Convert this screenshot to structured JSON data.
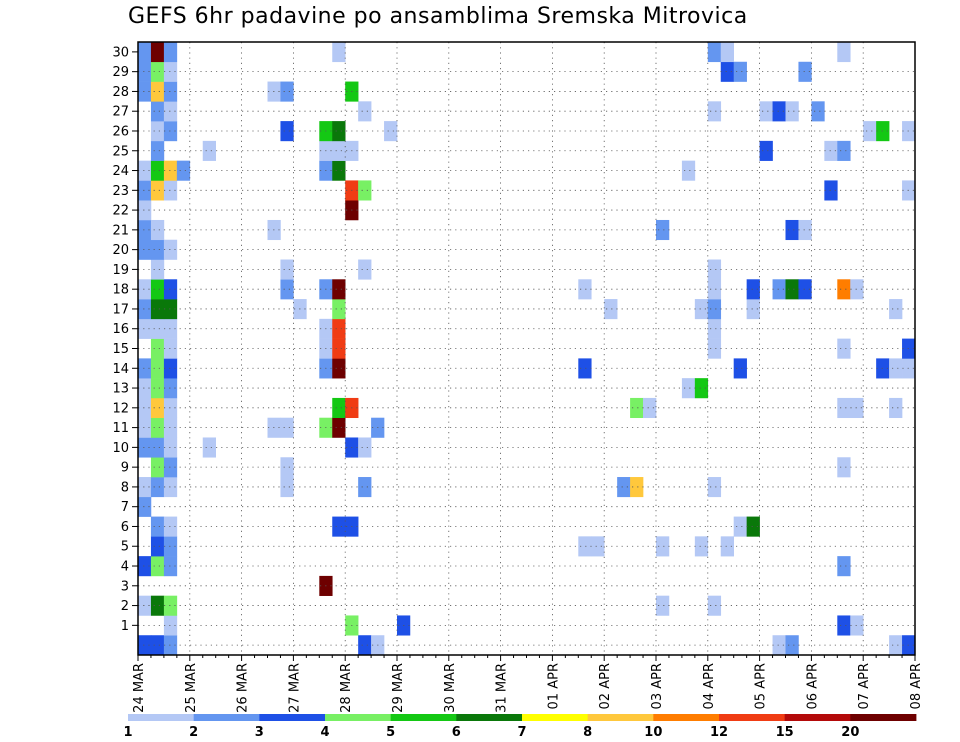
{
  "chart_data": {
    "type": "heatmap",
    "title": "GEFS 6hr padavine po ansamblima Sremska Mitrovica",
    "x_tick_labels": [
      "24 MAR",
      "25 MAR",
      "26 MAR",
      "27 MAR",
      "28 MAR",
      "29 MAR",
      "30 MAR",
      "31 MAR",
      "01 APR",
      "02 APR",
      "03 APR",
      "04 APR",
      "05 APR",
      "06 APR",
      "07 APR",
      "08 APR"
    ],
    "y_tick_labels": [
      "1",
      "2",
      "3",
      "4",
      "5",
      "6",
      "7",
      "8",
      "9",
      "10",
      "11",
      "12",
      "13",
      "14",
      "15",
      "16",
      "17",
      "18",
      "19",
      "20",
      "21",
      "22",
      "23",
      "24",
      "25",
      "26",
      "27",
      "28",
      "29",
      "30"
    ],
    "x_step": "6hr",
    "xlim": [
      0,
      60
    ],
    "ylim": [
      0,
      31
    ],
    "grid": true,
    "colorbar": {
      "labels": [
        "1",
        "2",
        "3",
        "4",
        "5",
        "6",
        "7",
        "8",
        "10",
        "12",
        "15",
        "20"
      ],
      "colors": [
        "#b4c8f5",
        "#6496f0",
        "#1e50e6",
        "#78f064",
        "#14c814",
        "#0a780a",
        "#ffff00",
        "#ffc83c",
        "#ff7d00",
        "#f03c14",
        "#b40a0a",
        "#6e0000"
      ]
    },
    "cells": [
      {
        "member": 0,
        "t": 0,
        "v": 3
      },
      {
        "member": 0,
        "t": 1,
        "v": 3
      },
      {
        "member": 0,
        "t": 2,
        "v": 2
      },
      {
        "member": 0,
        "t": 17,
        "v": 3
      },
      {
        "member": 0,
        "t": 18,
        "v": 1
      },
      {
        "member": 0,
        "t": 49,
        "v": 1
      },
      {
        "member": 0,
        "t": 50,
        "v": 2
      },
      {
        "member": 0,
        "t": 58,
        "v": 1
      },
      {
        "member": 0,
        "t": 59,
        "v": 3
      },
      {
        "member": 1,
        "t": 2,
        "v": 1
      },
      {
        "member": 1,
        "t": 16,
        "v": 4
      },
      {
        "member": 1,
        "t": 20,
        "v": 3
      },
      {
        "member": 1,
        "t": 54,
        "v": 3
      },
      {
        "member": 1,
        "t": 55,
        "v": 1
      },
      {
        "member": 2,
        "t": 0,
        "v": 1
      },
      {
        "member": 2,
        "t": 1,
        "v": 6
      },
      {
        "member": 2,
        "t": 2,
        "v": 4
      },
      {
        "member": 2,
        "t": 40,
        "v": 1
      },
      {
        "member": 2,
        "t": 44,
        "v": 1
      },
      {
        "member": 3,
        "t": 14,
        "v": 16
      },
      {
        "member": 4,
        "t": 0,
        "v": 3
      },
      {
        "member": 4,
        "t": 1,
        "v": 4
      },
      {
        "member": 4,
        "t": 2,
        "v": 2
      },
      {
        "member": 4,
        "t": 54,
        "v": 2
      },
      {
        "member": 5,
        "t": 1,
        "v": 3
      },
      {
        "member": 5,
        "t": 2,
        "v": 2
      },
      {
        "member": 5,
        "t": 34,
        "v": 1
      },
      {
        "member": 5,
        "t": 35,
        "v": 1
      },
      {
        "member": 5,
        "t": 40,
        "v": 1
      },
      {
        "member": 5,
        "t": 43,
        "v": 1
      },
      {
        "member": 5,
        "t": 45,
        "v": 1
      },
      {
        "member": 6,
        "t": 1,
        "v": 2
      },
      {
        "member": 6,
        "t": 2,
        "v": 1
      },
      {
        "member": 6,
        "t": 15,
        "v": 3
      },
      {
        "member": 6,
        "t": 16,
        "v": 3
      },
      {
        "member": 6,
        "t": 46,
        "v": 1
      },
      {
        "member": 6,
        "t": 47,
        "v": 6
      },
      {
        "member": 7,
        "t": 0,
        "v": 2
      },
      {
        "member": 8,
        "t": 0,
        "v": 1
      },
      {
        "member": 8,
        "t": 1,
        "v": 2
      },
      {
        "member": 8,
        "t": 2,
        "v": 1
      },
      {
        "member": 8,
        "t": 11,
        "v": 1
      },
      {
        "member": 8,
        "t": 17,
        "v": 2
      },
      {
        "member": 8,
        "t": 37,
        "v": 2
      },
      {
        "member": 8,
        "t": 38,
        "v": 8
      },
      {
        "member": 8,
        "t": 44,
        "v": 1
      },
      {
        "member": 9,
        "t": 1,
        "v": 4
      },
      {
        "member": 9,
        "t": 2,
        "v": 2
      },
      {
        "member": 9,
        "t": 11,
        "v": 1
      },
      {
        "member": 9,
        "t": 54,
        "v": 1
      },
      {
        "member": 10,
        "t": 0,
        "v": 2
      },
      {
        "member": 10,
        "t": 1,
        "v": 2
      },
      {
        "member": 10,
        "t": 2,
        "v": 1
      },
      {
        "member": 10,
        "t": 5,
        "v": 1
      },
      {
        "member": 10,
        "t": 16,
        "v": 3
      },
      {
        "member": 10,
        "t": 17,
        "v": 1
      },
      {
        "member": 11,
        "t": 0,
        "v": 1
      },
      {
        "member": 11,
        "t": 1,
        "v": 4
      },
      {
        "member": 11,
        "t": 2,
        "v": 1
      },
      {
        "member": 11,
        "t": 10,
        "v": 1
      },
      {
        "member": 11,
        "t": 11,
        "v": 1
      },
      {
        "member": 11,
        "t": 14,
        "v": 4
      },
      {
        "member": 11,
        "t": 15,
        "v": 16
      },
      {
        "member": 11,
        "t": 18,
        "v": 2
      },
      {
        "member": 12,
        "t": 0,
        "v": 1
      },
      {
        "member": 12,
        "t": 1,
        "v": 8
      },
      {
        "member": 12,
        "t": 2,
        "v": 1
      },
      {
        "member": 12,
        "t": 15,
        "v": 5
      },
      {
        "member": 12,
        "t": 16,
        "v": 10
      },
      {
        "member": 12,
        "t": 38,
        "v": 4
      },
      {
        "member": 12,
        "t": 39,
        "v": 1
      },
      {
        "member": 12,
        "t": 54,
        "v": 1
      },
      {
        "member": 12,
        "t": 55,
        "v": 1
      },
      {
        "member": 12,
        "t": 58,
        "v": 1
      },
      {
        "member": 13,
        "t": 0,
        "v": 1
      },
      {
        "member": 13,
        "t": 1,
        "v": 4
      },
      {
        "member": 13,
        "t": 2,
        "v": 2
      },
      {
        "member": 13,
        "t": 42,
        "v": 1
      },
      {
        "member": 13,
        "t": 43,
        "v": 5
      },
      {
        "member": 14,
        "t": 0,
        "v": 2
      },
      {
        "member": 14,
        "t": 1,
        "v": 4
      },
      {
        "member": 14,
        "t": 2,
        "v": 3
      },
      {
        "member": 14,
        "t": 14,
        "v": 2
      },
      {
        "member": 14,
        "t": 15,
        "v": 12
      },
      {
        "member": 14,
        "t": 34,
        "v": 3
      },
      {
        "member": 14,
        "t": 46,
        "v": 3
      },
      {
        "member": 14,
        "t": 57,
        "v": 3
      },
      {
        "member": 14,
        "t": 58,
        "v": 1
      },
      {
        "member": 14,
        "t": 59,
        "v": 1
      },
      {
        "member": 15,
        "t": 1,
        "v": 4
      },
      {
        "member": 15,
        "t": 2,
        "v": 1
      },
      {
        "member": 15,
        "t": 14,
        "v": 1
      },
      {
        "member": 15,
        "t": 15,
        "v": 10
      },
      {
        "member": 15,
        "t": 44,
        "v": 1
      },
      {
        "member": 15,
        "t": 54,
        "v": 1
      },
      {
        "member": 15,
        "t": 59,
        "v": 3
      },
      {
        "member": 16,
        "t": 0,
        "v": 1
      },
      {
        "member": 16,
        "t": 1,
        "v": 1
      },
      {
        "member": 16,
        "t": 2,
        "v": 1
      },
      {
        "member": 16,
        "t": 14,
        "v": 1
      },
      {
        "member": 16,
        "t": 15,
        "v": 10
      },
      {
        "member": 16,
        "t": 44,
        "v": 1
      },
      {
        "member": 17,
        "t": 0,
        "v": 2
      },
      {
        "member": 17,
        "t": 1,
        "v": 6
      },
      {
        "member": 17,
        "t": 2,
        "v": 6
      },
      {
        "member": 17,
        "t": 12,
        "v": 1
      },
      {
        "member": 17,
        "t": 15,
        "v": 4
      },
      {
        "member": 17,
        "t": 36,
        "v": 1
      },
      {
        "member": 17,
        "t": 43,
        "v": 1
      },
      {
        "member": 17,
        "t": 44,
        "v": 2
      },
      {
        "member": 17,
        "t": 47,
        "v": 1
      },
      {
        "member": 17,
        "t": 58,
        "v": 1
      },
      {
        "member": 18,
        "t": 0,
        "v": 1
      },
      {
        "member": 18,
        "t": 1,
        "v": 5
      },
      {
        "member": 18,
        "t": 2,
        "v": 3
      },
      {
        "member": 18,
        "t": 11,
        "v": 2
      },
      {
        "member": 18,
        "t": 14,
        "v": 2
      },
      {
        "member": 18,
        "t": 15,
        "v": 12
      },
      {
        "member": 18,
        "t": 34,
        "v": 1
      },
      {
        "member": 18,
        "t": 44,
        "v": 1
      },
      {
        "member": 18,
        "t": 47,
        "v": 3
      },
      {
        "member": 18,
        "t": 49,
        "v": 2
      },
      {
        "member": 18,
        "t": 50,
        "v": 6
      },
      {
        "member": 18,
        "t": 51,
        "v": 3
      },
      {
        "member": 18,
        "t": 54,
        "v": 9
      },
      {
        "member": 18,
        "t": 55,
        "v": 1
      },
      {
        "member": 19,
        "t": 1,
        "v": 1
      },
      {
        "member": 19,
        "t": 11,
        "v": 1
      },
      {
        "member": 19,
        "t": 17,
        "v": 1
      },
      {
        "member": 19,
        "t": 44,
        "v": 1
      },
      {
        "member": 20,
        "t": 0,
        "v": 2
      },
      {
        "member": 20,
        "t": 1,
        "v": 2
      },
      {
        "member": 20,
        "t": 2,
        "v": 1
      },
      {
        "member": 21,
        "t": 0,
        "v": 2
      },
      {
        "member": 21,
        "t": 1,
        "v": 1
      },
      {
        "member": 21,
        "t": 10,
        "v": 1
      },
      {
        "member": 21,
        "t": 40,
        "v": 2
      },
      {
        "member": 21,
        "t": 50,
        "v": 3
      },
      {
        "member": 21,
        "t": 51,
        "v": 1
      },
      {
        "member": 22,
        "t": 0,
        "v": 1
      },
      {
        "member": 22,
        "t": 16,
        "v": 12
      },
      {
        "member": 23,
        "t": 0,
        "v": 2
      },
      {
        "member": 23,
        "t": 1,
        "v": 8
      },
      {
        "member": 23,
        "t": 2,
        "v": 1
      },
      {
        "member": 23,
        "t": 16,
        "v": 10
      },
      {
        "member": 23,
        "t": 17,
        "v": 4
      },
      {
        "member": 23,
        "t": 53,
        "v": 3
      },
      {
        "member": 23,
        "t": 59,
        "v": 1
      },
      {
        "member": 24,
        "t": 0,
        "v": 1
      },
      {
        "member": 24,
        "t": 1,
        "v": 5
      },
      {
        "member": 24,
        "t": 2,
        "v": 8
      },
      {
        "member": 24,
        "t": 3,
        "v": 2
      },
      {
        "member": 24,
        "t": 14,
        "v": 2
      },
      {
        "member": 24,
        "t": 15,
        "v": 6
      },
      {
        "member": 24,
        "t": 42,
        "v": 1
      },
      {
        "member": 25,
        "t": 1,
        "v": 2
      },
      {
        "member": 25,
        "t": 5,
        "v": 1
      },
      {
        "member": 25,
        "t": 14,
        "v": 1
      },
      {
        "member": 25,
        "t": 15,
        "v": 1
      },
      {
        "member": 25,
        "t": 16,
        "v": 1
      },
      {
        "member": 25,
        "t": 48,
        "v": 3
      },
      {
        "member": 25,
        "t": 53,
        "v": 1
      },
      {
        "member": 25,
        "t": 54,
        "v": 2
      },
      {
        "member": 26,
        "t": 1,
        "v": 1
      },
      {
        "member": 26,
        "t": 2,
        "v": 2
      },
      {
        "member": 26,
        "t": 11,
        "v": 3
      },
      {
        "member": 26,
        "t": 14,
        "v": 5
      },
      {
        "member": 26,
        "t": 15,
        "v": 6
      },
      {
        "member": 26,
        "t": 19,
        "v": 1
      },
      {
        "member": 26,
        "t": 56,
        "v": 1
      },
      {
        "member": 26,
        "t": 57,
        "v": 5
      },
      {
        "member": 26,
        "t": 59,
        "v": 1
      },
      {
        "member": 27,
        "t": 1,
        "v": 2
      },
      {
        "member": 27,
        "t": 2,
        "v": 1
      },
      {
        "member": 27,
        "t": 17,
        "v": 1
      },
      {
        "member": 27,
        "t": 44,
        "v": 1
      },
      {
        "member": 27,
        "t": 48,
        "v": 1
      },
      {
        "member": 27,
        "t": 49,
        "v": 3
      },
      {
        "member": 27,
        "t": 50,
        "v": 1
      },
      {
        "member": 27,
        "t": 52,
        "v": 2
      },
      {
        "member": 28,
        "t": 0,
        "v": 2
      },
      {
        "member": 28,
        "t": 1,
        "v": 8
      },
      {
        "member": 28,
        "t": 2,
        "v": 2
      },
      {
        "member": 28,
        "t": 10,
        "v": 1
      },
      {
        "member": 28,
        "t": 11,
        "v": 2
      },
      {
        "member": 28,
        "t": 16,
        "v": 5
      },
      {
        "member": 29,
        "t": 0,
        "v": 2
      },
      {
        "member": 29,
        "t": 1,
        "v": 4
      },
      {
        "member": 29,
        "t": 2,
        "v": 1
      },
      {
        "member": 29,
        "t": 45,
        "v": 3
      },
      {
        "member": 29,
        "t": 46,
        "v": 2
      },
      {
        "member": 29,
        "t": 51,
        "v": 2
      },
      {
        "member": 30,
        "t": 0,
        "v": 2
      },
      {
        "member": 30,
        "t": 1,
        "v": 15
      },
      {
        "member": 30,
        "t": 2,
        "v": 2
      },
      {
        "member": 30,
        "t": 15,
        "v": 1
      },
      {
        "member": 30,
        "t": 44,
        "v": 2
      },
      {
        "member": 30,
        "t": 45,
        "v": 1
      },
      {
        "member": 30,
        "t": 54,
        "v": 1
      }
    ]
  }
}
